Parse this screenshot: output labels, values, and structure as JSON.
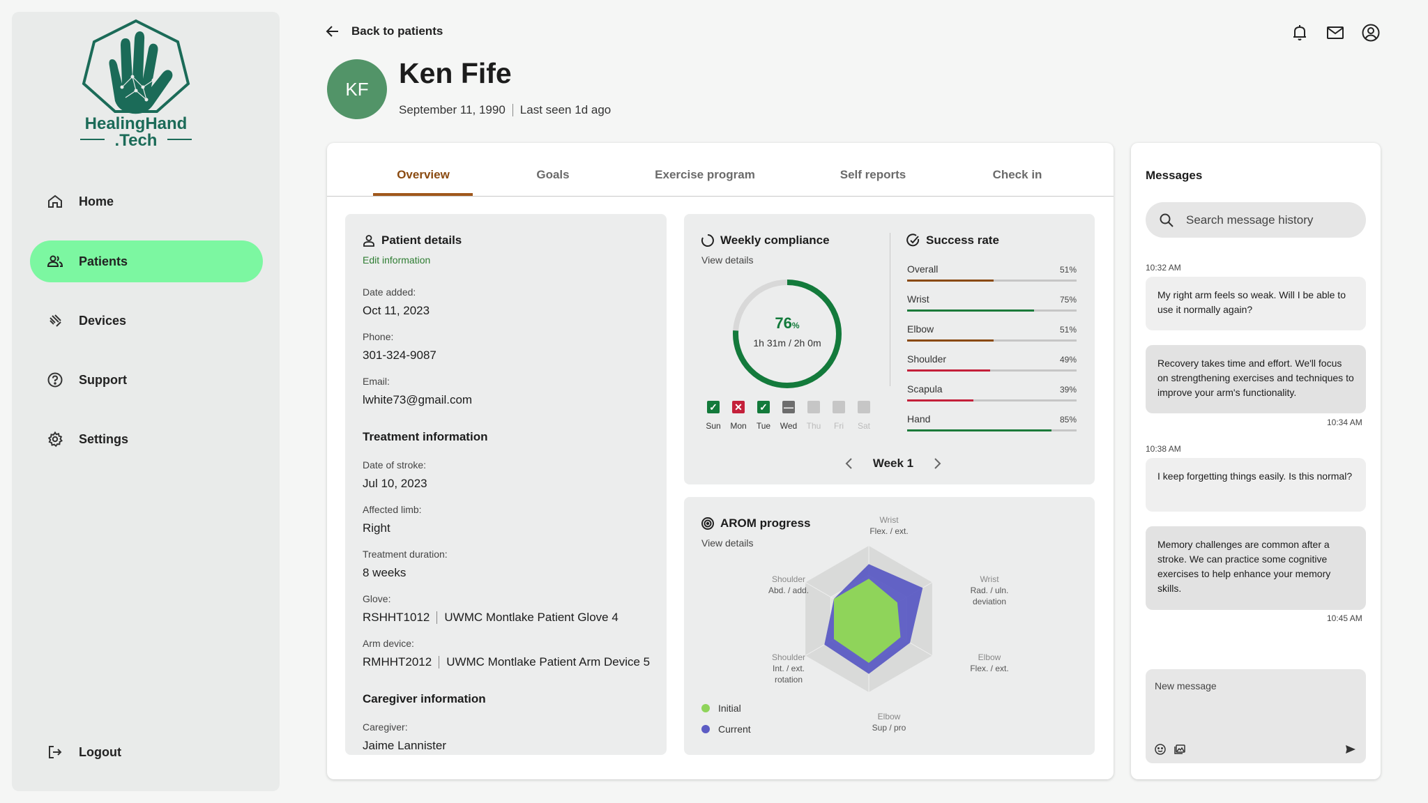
{
  "brand": {
    "line1": "HealingHand",
    "line2": ".Tech"
  },
  "sidebar": {
    "items": [
      {
        "label": "Home",
        "icon": "home-icon"
      },
      {
        "label": "Patients",
        "icon": "people-icon"
      },
      {
        "label": "Devices",
        "icon": "device-icon"
      },
      {
        "label": "Support",
        "icon": "help-icon"
      },
      {
        "label": "Settings",
        "icon": "gear-icon"
      }
    ],
    "logout": "Logout"
  },
  "header": {
    "back": "Back to patients",
    "initials": "KF",
    "name": "Ken Fife",
    "dob": "September 11, 1990",
    "last_seen": "Last seen 1d ago"
  },
  "tabs": [
    "Overview",
    "Goals",
    "Exercise program",
    "Self reports",
    "Check in"
  ],
  "patient": {
    "title": "Patient details",
    "edit": "Edit information",
    "date_added_label": "Date added:",
    "date_added": "Oct 11, 2023",
    "phone_label": "Phone:",
    "phone": "301-324-9087",
    "email_label": "Email:",
    "email": "lwhite73@gmail.com",
    "treatment_title": "Treatment information",
    "stroke_label": "Date of stroke:",
    "stroke": "Jul 10, 2023",
    "limb_label": "Affected limb:",
    "limb": "Right",
    "duration_label": "Treatment duration:",
    "duration": "8 weeks",
    "glove_label": "Glove:",
    "glove_id": "RSHHT1012",
    "glove_name": "UWMC Montlake Patient Glove 4",
    "arm_label": "Arm device:",
    "arm_id": "RMHHT2012",
    "arm_name": "UWMC Montlake Patient Arm Device 5",
    "caregiver_title": "Caregiver information",
    "caregiver_label": "Caregiver:",
    "caregiver": "Jaime Lannister"
  },
  "compliance": {
    "title": "Weekly compliance",
    "view": "View details",
    "percent": "76",
    "percent_sign": "%",
    "progress": 0.76,
    "time": "1h 31m / 2h 0m",
    "days": [
      {
        "label": "Sun",
        "status": "done"
      },
      {
        "label": "Mon",
        "status": "missed"
      },
      {
        "label": "Tue",
        "status": "done"
      },
      {
        "label": "Wed",
        "status": "partial"
      },
      {
        "label": "Thu",
        "status": "future"
      },
      {
        "label": "Fri",
        "status": "future"
      },
      {
        "label": "Sat",
        "status": "future"
      }
    ],
    "week": "Week 1"
  },
  "success": {
    "title": "Success rate",
    "rows": [
      {
        "name": "Overall",
        "pct": "51%",
        "value": 0.51,
        "color": "#8a4a10"
      },
      {
        "name": "Wrist",
        "pct": "75%",
        "value": 0.75,
        "color": "#1b7a3a"
      },
      {
        "name": "Elbow",
        "pct": "51%",
        "value": 0.51,
        "color": "#8a4a10"
      },
      {
        "name": "Shoulder",
        "pct": "49%",
        "value": 0.49,
        "color": "#c4203a"
      },
      {
        "name": "Scapula",
        "pct": "39%",
        "value": 0.39,
        "color": "#c4203a"
      },
      {
        "name": "Hand",
        "pct": "85%",
        "value": 0.85,
        "color": "#1b7a3a"
      }
    ]
  },
  "arom": {
    "title": "AROM progress",
    "view": "View details",
    "axes": [
      {
        "g": "Wrist",
        "l": "Flex. / ext."
      },
      {
        "g": "Wrist",
        "l": "Rad. / uln. deviation"
      },
      {
        "g": "Elbow",
        "l": "Flex. / ext."
      },
      {
        "g": "Elbow",
        "l": "Sup / pro"
      },
      {
        "g": "Shoulder",
        "l": "Int. / ext. rotation"
      },
      {
        "g": "Shoulder",
        "l": "Abd. / add."
      }
    ],
    "initial": [
      0.55,
      0.45,
      0.5,
      0.6,
      0.55,
      0.55
    ],
    "current": [
      0.75,
      0.85,
      0.65,
      0.75,
      0.7,
      0.55
    ],
    "legend": [
      {
        "name": "Initial",
        "color": "#8fd45a"
      },
      {
        "name": "Current",
        "color": "#5c5cc4"
      }
    ]
  },
  "messages": {
    "title": "Messages",
    "search_placeholder": "Search message history",
    "items": [
      {
        "time": "10:32 AM",
        "text": "My right arm feels so weak. Will I be able to use it normally again?"
      },
      {
        "time": "10:34 AM",
        "text": "Recovery takes time and effort. We'll focus on strengthening exercises and techniques to improve your arm's functionality."
      },
      {
        "time": "10:38 AM",
        "text": "I keep forgetting things easily. Is this normal?"
      },
      {
        "time": "10:45 AM",
        "text": "Memory challenges are common after a stroke. We can practice some cognitive exercises to help enhance your memory skills."
      }
    ],
    "new_placeholder": "New message"
  }
}
